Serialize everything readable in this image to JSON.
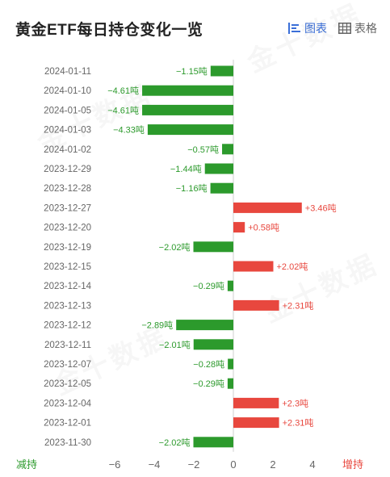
{
  "header": {
    "title": "黄金ETF每日持仓变化一览",
    "tabs": [
      {
        "label": "图表",
        "icon": "bar-chart-icon",
        "active": true
      },
      {
        "label": "表格",
        "icon": "table-icon",
        "active": false
      }
    ]
  },
  "colors": {
    "positive": "#e8473e",
    "negative": "#2c9a2c",
    "axis": "#666666"
  },
  "watermark": "金十数据",
  "chart_data": {
    "type": "bar",
    "orientation": "horizontal",
    "categories": [
      "2024-01-11",
      "2024-01-10",
      "2024-01-05",
      "2024-01-03",
      "2024-01-02",
      "2023-12-29",
      "2023-12-28",
      "2023-12-27",
      "2023-12-20",
      "2023-12-19",
      "2023-12-15",
      "2023-12-14",
      "2023-12-13",
      "2023-12-12",
      "2023-12-11",
      "2023-12-07",
      "2023-12-05",
      "2023-12-04",
      "2023-12-01",
      "2023-11-30"
    ],
    "values": [
      -1.15,
      -4.61,
      -4.61,
      -4.33,
      -0.57,
      -1.44,
      -1.16,
      3.46,
      0.58,
      -2.02,
      2.02,
      -0.29,
      2.31,
      -2.89,
      -2.01,
      -0.28,
      -0.29,
      2.3,
      2.31,
      -2.02
    ],
    "labels": [
      "−1.15吨",
      "−4.61吨",
      "−4.61吨",
      "−4.33吨",
      "−0.57吨",
      "−1.44吨",
      "−1.16吨",
      "+3.46吨",
      "+0.58吨",
      "−2.02吨",
      "+2.02吨",
      "−0.29吨",
      "+2.31吨",
      "−2.89吨",
      "−2.01吨",
      "−0.28吨",
      "−0.29吨",
      "+2.3吨",
      "+2.31吨",
      "−2.02吨"
    ],
    "xlim": [
      -6,
      4
    ],
    "xticks": [
      -6,
      -4,
      -2,
      0,
      2,
      4
    ],
    "xtick_labels": [
      "−6",
      "−4",
      "−2",
      "0",
      "2",
      "4"
    ],
    "left_label": "减持",
    "right_label": "增持"
  }
}
